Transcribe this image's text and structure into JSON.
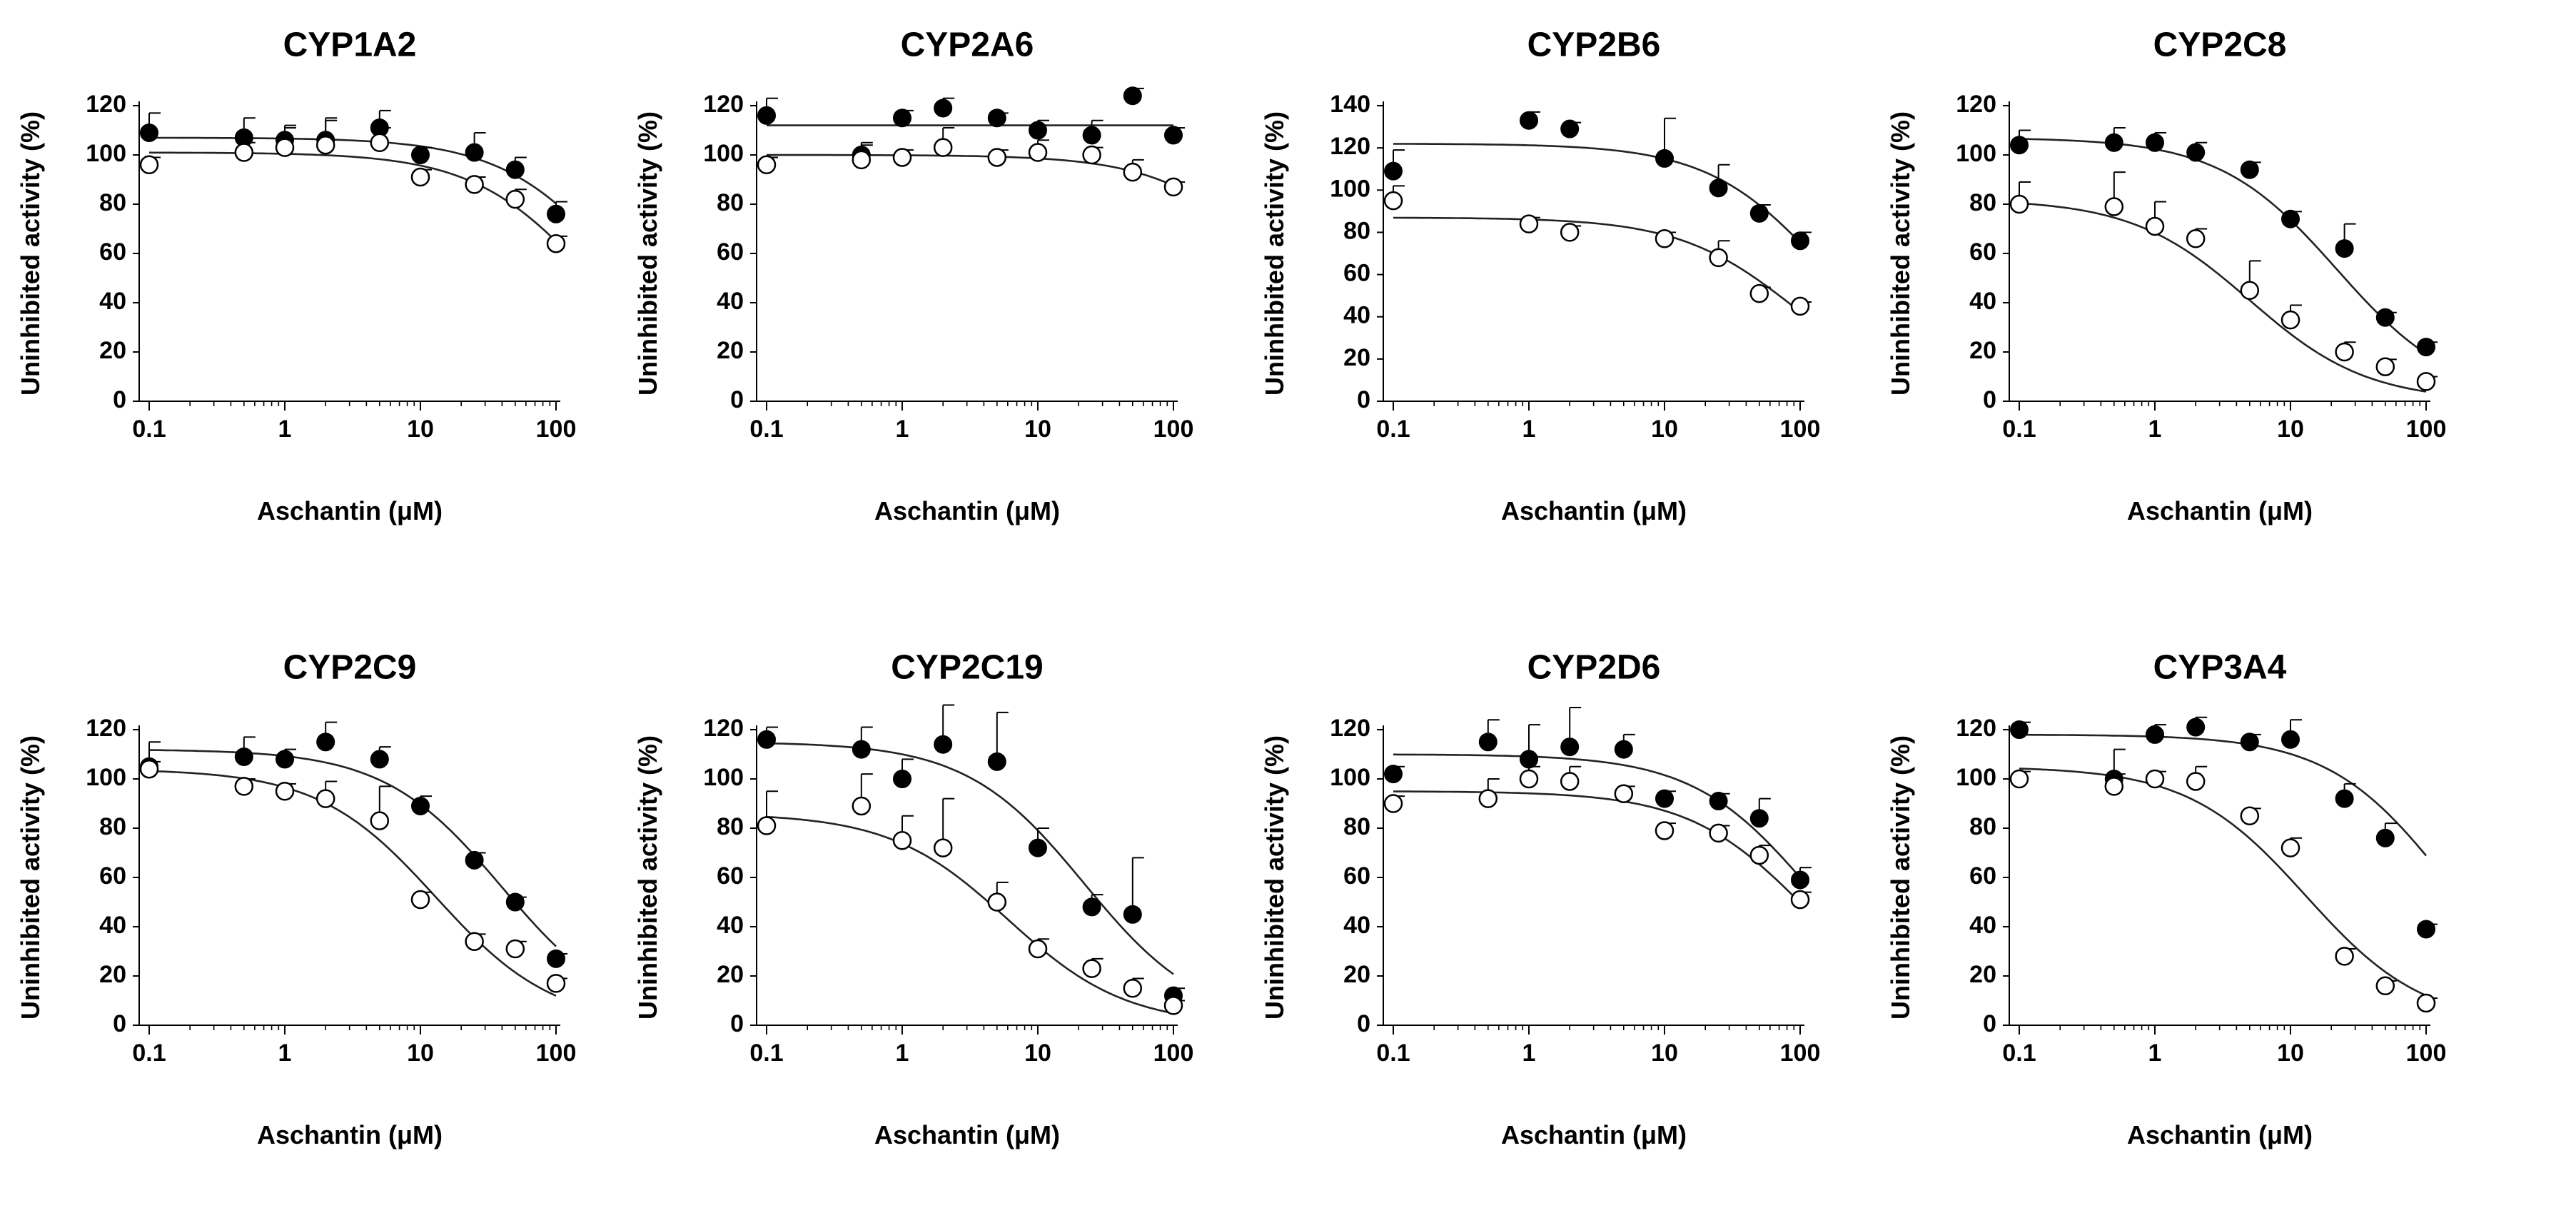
{
  "chart_data": [
    {
      "type": "scatter",
      "title": "CYP1A2",
      "xlabel": "Aschantin (μM)",
      "ylabel": "Uninhibited activity (%)",
      "xscale": "log",
      "xlim": [
        0.1,
        100
      ],
      "ylim": [
        0,
        120
      ],
      "xticks": [
        "0.1",
        "1",
        "10",
        "100"
      ],
      "yticks": [
        "0",
        "20",
        "40",
        "60",
        "80",
        "100",
        "120"
      ],
      "x": [
        0.1,
        0.5,
        1,
        2,
        5,
        10,
        25,
        50,
        100
      ],
      "series": [
        {
          "name": "filled",
          "marker": "filled-circle",
          "values": [
            109,
            107,
            106,
            106,
            111,
            100,
            101,
            94,
            76
          ],
          "errors": [
            8,
            8,
            5,
            8,
            7,
            3,
            8,
            5,
            5
          ],
          "fit": {
            "top": 107,
            "bottom": 0,
            "ic50": 300,
            "hill": 1
          }
        },
        {
          "name": "open",
          "marker": "open-circle",
          "values": [
            96,
            101,
            103,
            104,
            105,
            91,
            88,
            82,
            64
          ],
          "errors": [
            3,
            4,
            9,
            11,
            6,
            3,
            3,
            4,
            3
          ],
          "fit": {
            "top": 101,
            "bottom": 0,
            "ic50": 180,
            "hill": 1
          }
        }
      ]
    },
    {
      "type": "scatter",
      "title": "CYP2A6",
      "xlabel": "Aschantin (μM)",
      "ylabel": "Uninhibited activity (%)",
      "xscale": "log",
      "xlim": [
        0.1,
        100
      ],
      "ylim": [
        0,
        120
      ],
      "xticks": [
        "0.1",
        "1",
        "10",
        "100"
      ],
      "yticks": [
        "0",
        "20",
        "40",
        "60",
        "80",
        "100",
        "120"
      ],
      "x": [
        0.1,
        0.5,
        1,
        2,
        5,
        10,
        25,
        50,
        100
      ],
      "series": [
        {
          "name": "filled",
          "marker": "filled-circle",
          "values": [
            116,
            100,
            115,
            119,
            115,
            110,
            108,
            124,
            108
          ],
          "errors": [
            7,
            4,
            3,
            4,
            2,
            4,
            6,
            3,
            3
          ],
          "fit": {
            "top": 112,
            "bottom": 112,
            "ic50": 1000,
            "hill": 1
          }
        },
        {
          "name": "open",
          "marker": "open-circle",
          "values": [
            96,
            98,
            99,
            103,
            99,
            101,
            100,
            93,
            87
          ],
          "errors": [
            3,
            7,
            3,
            8,
            3,
            5,
            3,
            5,
            2
          ],
          "fit": {
            "top": 100,
            "bottom": 0,
            "ic50": 700,
            "hill": 1
          }
        }
      ]
    },
    {
      "type": "scatter",
      "title": "CYP2B6",
      "xlabel": "Aschantin (μM)",
      "ylabel": "Uninhibited activity (%)",
      "xscale": "log",
      "xlim": [
        0.1,
        100
      ],
      "ylim": [
        0,
        140
      ],
      "xticks": [
        "0.1",
        "1",
        "10",
        "100"
      ],
      "yticks": [
        "0",
        "20",
        "40",
        "60",
        "80",
        "100",
        "120",
        "140"
      ],
      "x": [
        0.1,
        1,
        2,
        10,
        25,
        50,
        100
      ],
      "series": [
        {
          "name": "filled",
          "marker": "filled-circle",
          "values": [
            109,
            133,
            129,
            115,
            101,
            89,
            76
          ],
          "errors": [
            10,
            4,
            3,
            19,
            11,
            4,
            4
          ],
          "fit": {
            "top": 122,
            "bottom": 0,
            "ic50": 160,
            "hill": 1
          }
        },
        {
          "name": "open",
          "marker": "open-circle",
          "values": [
            95,
            84,
            80,
            77,
            68,
            51,
            45
          ],
          "errors": [
            7,
            3,
            3,
            3,
            8,
            3,
            2
          ],
          "fit": {
            "top": 87,
            "bottom": 0,
            "ic50": 95,
            "hill": 1
          }
        }
      ]
    },
    {
      "type": "scatter",
      "title": "CYP2C8",
      "xlabel": "Aschantin (μM)",
      "ylabel": "Uninhibited activity (%)",
      "xscale": "log",
      "xlim": [
        0.1,
        100
      ],
      "ylim": [
        0,
        120
      ],
      "xticks": [
        "0.1",
        "1",
        "10",
        "100"
      ],
      "yticks": [
        "0",
        "20",
        "40",
        "60",
        "80",
        "100",
        "120"
      ],
      "x": [
        0.1,
        0.5,
        1,
        2,
        5,
        10,
        25,
        50,
        100
      ],
      "series": [
        {
          "name": "filled",
          "marker": "filled-circle",
          "values": [
            104,
            105,
            105,
            101,
            94,
            74,
            62,
            34,
            22
          ],
          "errors": [
            6,
            6,
            4,
            4,
            3,
            3,
            10,
            2,
            2
          ],
          "fit": {
            "top": 107,
            "bottom": 0,
            "ic50": 22,
            "hill": 1
          }
        },
        {
          "name": "open",
          "marker": "open-circle",
          "values": [
            80,
            79,
            71,
            66,
            45,
            33,
            20,
            14,
            8
          ],
          "errors": [
            9,
            14,
            10,
            4,
            12,
            6,
            4,
            3,
            2
          ],
          "fit": {
            "top": 82,
            "bottom": 0,
            "ic50": 5,
            "hill": 1
          }
        }
      ]
    },
    {
      "type": "scatter",
      "title": "CYP2C9",
      "xlabel": "Aschantin (μM)",
      "ylabel": "Uninhibited activity (%)",
      "xscale": "log",
      "xlim": [
        0.1,
        100
      ],
      "ylim": [
        0,
        120
      ],
      "xticks": [
        "0.1",
        "1",
        "10",
        "100"
      ],
      "yticks": [
        "0",
        "20",
        "40",
        "60",
        "80",
        "100",
        "120"
      ],
      "x": [
        0.1,
        0.5,
        1,
        2,
        5,
        10,
        25,
        50,
        100
      ],
      "series": [
        {
          "name": "filled",
          "marker": "filled-circle",
          "values": [
            105,
            109,
            108,
            115,
            108,
            89,
            67,
            50,
            27
          ],
          "errors": [
            10,
            8,
            4,
            8,
            5,
            4,
            3,
            2,
            2
          ],
          "fit": {
            "top": 112,
            "bottom": 0,
            "ic50": 40,
            "hill": 1
          }
        },
        {
          "name": "open",
          "marker": "open-circle",
          "values": [
            104,
            97,
            95,
            92,
            83,
            51,
            34,
            31,
            17
          ],
          "errors": [
            3,
            3,
            3,
            7,
            14,
            3,
            3,
            3,
            2
          ],
          "fit": {
            "top": 104,
            "bottom": 0,
            "ic50": 13,
            "hill": 1
          }
        }
      ]
    },
    {
      "type": "scatter",
      "title": "CYP2C19",
      "xlabel": "Aschantin (μM)",
      "ylabel": "Uninhibited activity (%)",
      "xscale": "log",
      "xlim": [
        0.1,
        100
      ],
      "ylim": [
        0,
        120
      ],
      "xticks": [
        "0.1",
        "1",
        "10",
        "100"
      ],
      "yticks": [
        "0",
        "20",
        "40",
        "60",
        "80",
        "100",
        "120"
      ],
      "x": [
        0.1,
        0.5,
        1,
        2,
        5,
        10,
        25,
        50,
        100
      ],
      "series": [
        {
          "name": "filled",
          "marker": "filled-circle",
          "values": [
            116,
            112,
            100,
            114,
            107,
            72,
            48,
            45,
            12
          ],
          "errors": [
            5,
            9,
            8,
            16,
            20,
            8,
            5,
            23,
            3
          ],
          "fit": {
            "top": 115,
            "bottom": 0,
            "ic50": 22,
            "hill": 1
          }
        },
        {
          "name": "open",
          "marker": "open-circle",
          "values": [
            81,
            89,
            75,
            72,
            50,
            31,
            23,
            15,
            8
          ],
          "errors": [
            14,
            13,
            10,
            20,
            8,
            4,
            4,
            4,
            2
          ],
          "fit": {
            "top": 86,
            "bottom": 0,
            "ic50": 6,
            "hill": 1
          }
        }
      ]
    },
    {
      "type": "scatter",
      "title": "CYP2D6",
      "xlabel": "Aschantin (μM)",
      "ylabel": "Uninhibited activity (%)",
      "xscale": "log",
      "xlim": [
        0.1,
        100
      ],
      "ylim": [
        0,
        120
      ],
      "xticks": [
        "0.1",
        "1",
        "10",
        "100"
      ],
      "yticks": [
        "0",
        "20",
        "40",
        "60",
        "80",
        "100",
        "120"
      ],
      "x": [
        0.1,
        0.5,
        1,
        2,
        5,
        10,
        25,
        50,
        100
      ],
      "series": [
        {
          "name": "filled",
          "marker": "filled-circle",
          "values": [
            102,
            115,
            108,
            113,
            112,
            92,
            91,
            84,
            59
          ],
          "errors": [
            3,
            9,
            14,
            16,
            6,
            3,
            3,
            8,
            5
          ],
          "fit": {
            "top": 110,
            "bottom": 0,
            "ic50": 120,
            "hill": 1
          }
        },
        {
          "name": "open",
          "marker": "open-circle",
          "values": [
            90,
            92,
            100,
            99,
            94,
            79,
            78,
            69,
            51
          ],
          "errors": [
            3,
            8,
            5,
            6,
            3,
            3,
            3,
            4,
            3
          ],
          "fit": {
            "top": 95,
            "bottom": 0,
            "ic50": 110,
            "hill": 1
          }
        }
      ]
    },
    {
      "type": "scatter",
      "title": "CYP3A4",
      "xlabel": "Aschantin (μM)",
      "ylabel": "Uninhibited activity (%)",
      "xscale": "log",
      "xlim": [
        0.1,
        100
      ],
      "ylim": [
        0,
        120
      ],
      "xticks": [
        "0.1",
        "1",
        "10",
        "100"
      ],
      "yticks": [
        "0",
        "20",
        "40",
        "60",
        "80",
        "100",
        "120"
      ],
      "x": [
        0.1,
        0.5,
        1,
        2,
        5,
        10,
        25,
        50,
        100
      ],
      "series": [
        {
          "name": "filled",
          "marker": "filled-circle",
          "values": [
            120,
            100,
            118,
            121,
            115,
            116,
            92,
            76,
            39
          ],
          "errors": [
            3,
            12,
            4,
            4,
            3,
            8,
            6,
            6,
            2
          ],
          "fit": {
            "top": 118,
            "bottom": 0,
            "ic50": 140,
            "hill": 1
          }
        },
        {
          "name": "open",
          "marker": "open-circle",
          "values": [
            100,
            97,
            100,
            99,
            85,
            72,
            28,
            16,
            9
          ],
          "errors": [
            3,
            5,
            3,
            6,
            3,
            4,
            3,
            2,
            2
          ],
          "fit": {
            "top": 105,
            "bottom": 0,
            "ic50": 13,
            "hill": 1
          }
        }
      ]
    }
  ]
}
